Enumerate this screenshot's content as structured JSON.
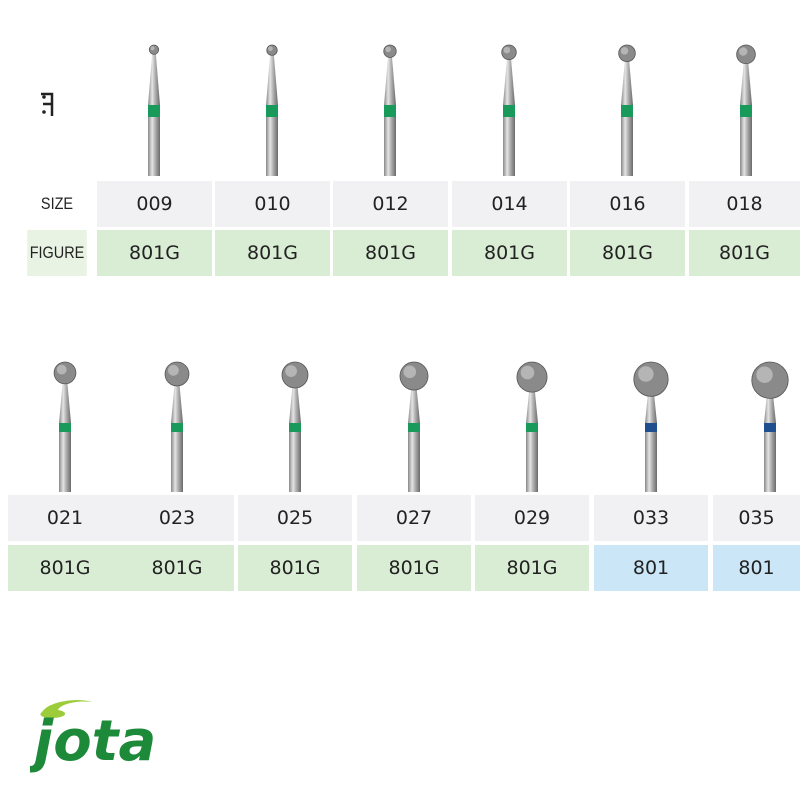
{
  "labels": {
    "size": "SIZE",
    "figure": "FIGURE"
  },
  "brand": {
    "name": "jota",
    "color": "#1d8a3a",
    "accent": "#9ccc3a"
  },
  "colors": {
    "green_band": "#1a9a5a",
    "blue_band": "#1f4f8f",
    "green_cell": "#d9ecd4",
    "blue_cell": "#cbe6f7",
    "size_cell": "#f1f1f3"
  },
  "row1": [
    {
      "size": "009",
      "figure": "801G",
      "band": "green"
    },
    {
      "size": "010",
      "figure": "801G",
      "band": "green"
    },
    {
      "size": "012",
      "figure": "801G",
      "band": "green"
    },
    {
      "size": "014",
      "figure": "801G",
      "band": "green"
    },
    {
      "size": "016",
      "figure": "801G",
      "band": "green"
    },
    {
      "size": "018",
      "figure": "801G",
      "band": "green"
    }
  ],
  "row2": [
    {
      "size": "021",
      "figure": "801G",
      "band": "green"
    },
    {
      "size": "023",
      "figure": "801G",
      "band": "green"
    },
    {
      "size": "025",
      "figure": "801G",
      "band": "green"
    },
    {
      "size": "027",
      "figure": "801G",
      "band": "green"
    },
    {
      "size": "029",
      "figure": "801G",
      "band": "green"
    },
    {
      "size": "033",
      "figure": "801",
      "band": "blue"
    },
    {
      "size": "035",
      "figure": "801",
      "band": "blue"
    }
  ]
}
